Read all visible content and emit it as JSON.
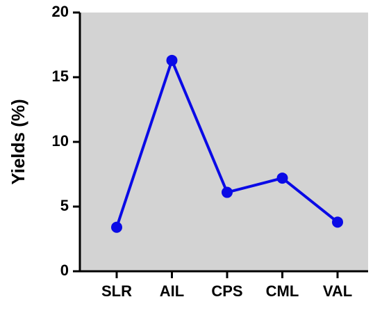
{
  "chart_data": {
    "type": "line",
    "y_label": "Yields (%)",
    "categories": [
      "SLR",
      "AIL",
      "CPS",
      "CML",
      "VAL"
    ],
    "values": [
      3.4,
      16.3,
      6.1,
      7.2,
      3.8
    ],
    "color": "#0a0ae6",
    "ylim": [
      0,
      20
    ],
    "yticks": [
      0,
      5,
      10,
      15,
      20
    ]
  }
}
